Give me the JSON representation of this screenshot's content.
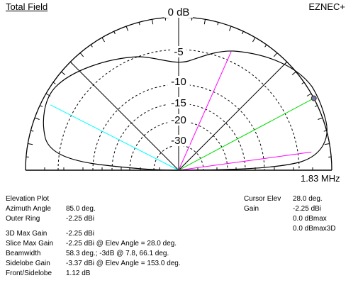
{
  "header": {
    "title": "Total Field",
    "brand": "EZNEC+",
    "frequency": "1.83 MHz"
  },
  "ring_labels": [
    "0 dB",
    "-5",
    "-10",
    "-15",
    "-20",
    "-30"
  ],
  "colors": {
    "pattern": "#000000",
    "grid": "#000000",
    "max_gain_line": "#00dd00",
    "beamwidth_lines": "#ff00ff",
    "sidelobe_line": "#00ffff",
    "cursor_dot": "#777799"
  },
  "plot_data": {
    "type": "polar-elevation",
    "outer_ring_dbi": -2.25,
    "max_gain_angle_deg": 28.0,
    "beamwidth_angles_deg": [
      7.8,
      66.1
    ],
    "sidelobe_angle_deg": 153.0,
    "radial_angles_deg": [
      45,
      90,
      135
    ]
  },
  "left_info": [
    {
      "label": "Elevation Plot",
      "value": ""
    },
    {
      "label": "Azimuth Angle",
      "value": "85.0 deg."
    },
    {
      "label": "Outer Ring",
      "value": "-2.25 dBi"
    },
    {
      "gap": true
    },
    {
      "label": "3D Max Gain",
      "value": "-2.25 dBi"
    },
    {
      "label": "Slice Max Gain",
      "value": "-2.25 dBi @ Elev Angle = 28.0 deg."
    },
    {
      "label": "Beamwidth",
      "value": "58.3 deg.; -3dB @ 7.8, 66.1 deg."
    },
    {
      "label": "Sidelobe Gain",
      "value": "-3.37 dBi @ Elev Angle = 153.0 deg."
    },
    {
      "label": "Front/Sidelobe",
      "value": "1.12 dB"
    }
  ],
  "right_info": [
    {
      "label": "Cursor Elev",
      "value": "28.0 deg."
    },
    {
      "label": "Gain",
      "value": "-2.25 dBi"
    },
    {
      "label": "",
      "value": "0.0 dBmax"
    },
    {
      "label": "",
      "value": "0.0 dBmax3D"
    }
  ]
}
